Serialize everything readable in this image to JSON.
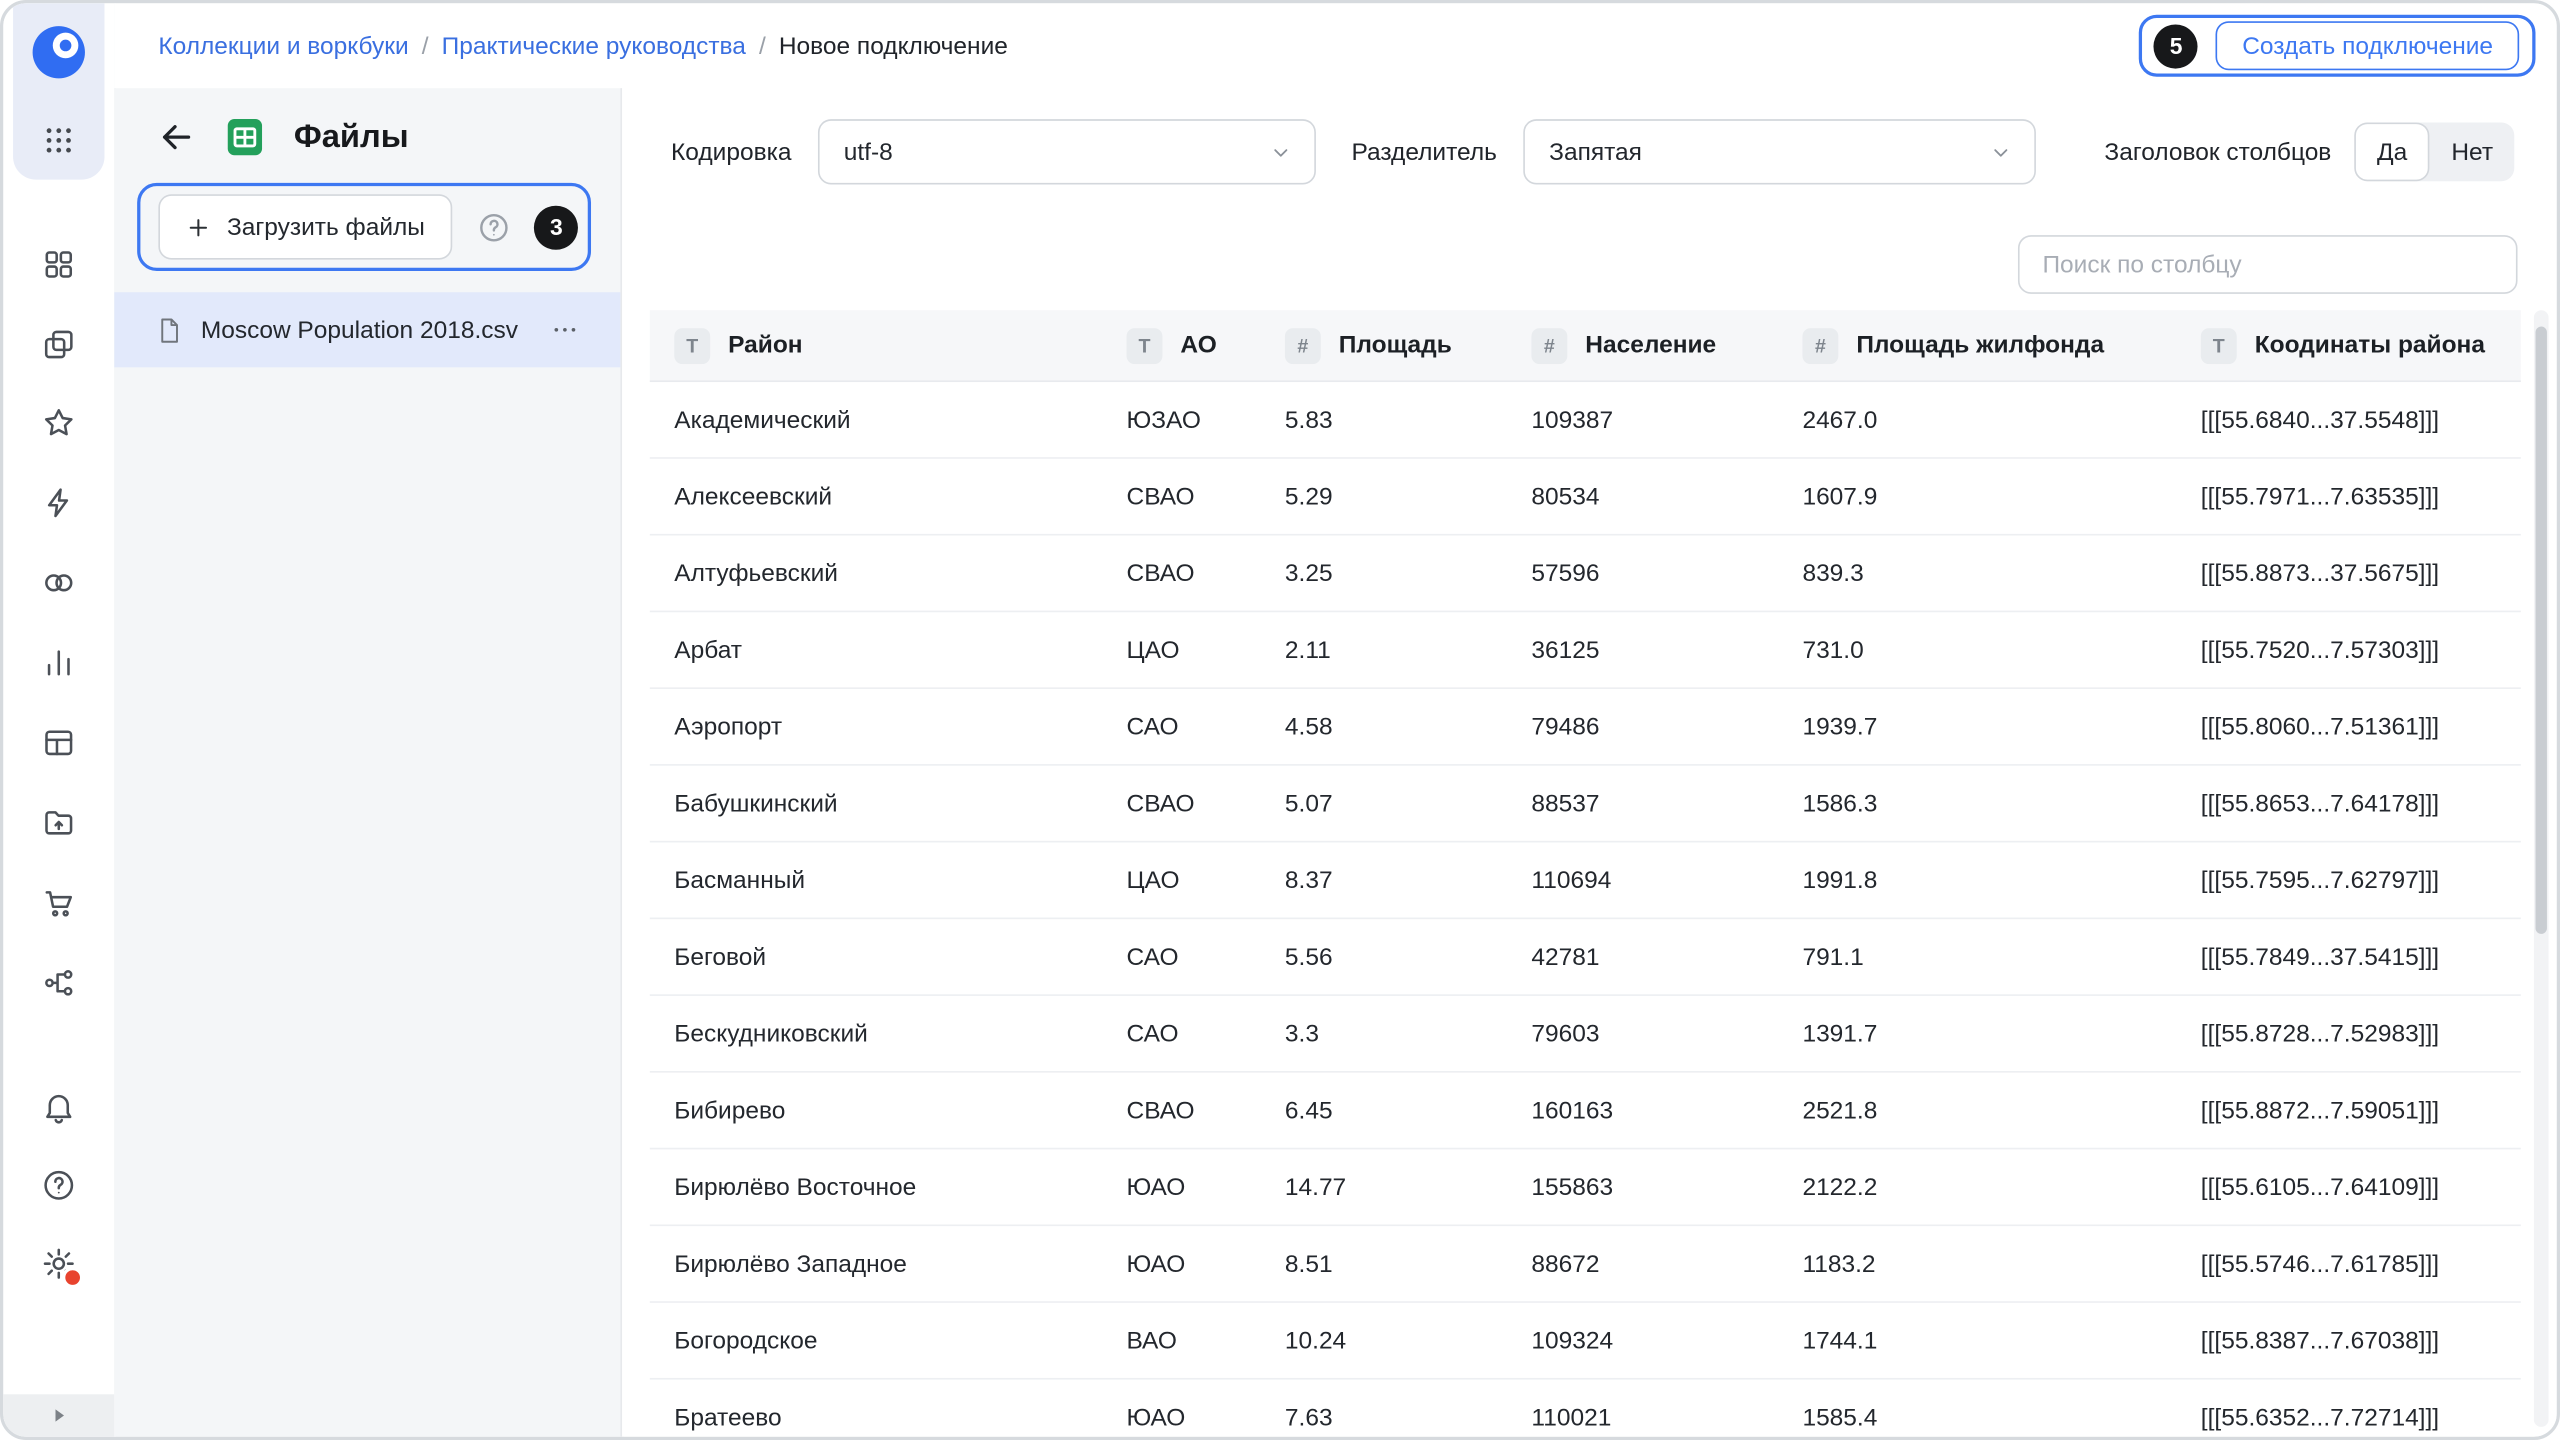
{
  "breadcrumbs": {
    "separator": "/",
    "items": [
      {
        "label": "Коллекции и воркбуки",
        "link": true
      },
      {
        "label": "Практические руководства",
        "link": true
      },
      {
        "label": "Новое подключение",
        "link": false
      }
    ]
  },
  "topbar": {
    "step_badge": "5",
    "create_button": "Создать подключение"
  },
  "rail_icons": [
    "datalens-logo",
    "apps-grid",
    "collections",
    "workbooks",
    "favorites",
    "connections",
    "datasets",
    "charts",
    "dashboards",
    "storage",
    "marketplace",
    "services",
    "notifications-bell",
    "help",
    "settings-gear",
    "expand-play"
  ],
  "files_panel": {
    "title": "Файлы",
    "upload_button_label": "Загрузить файлы",
    "help_icon": "?",
    "step_badge": "3",
    "files": [
      {
        "name": "Moscow Population 2018.csv"
      }
    ]
  },
  "toolbar": {
    "encoding": {
      "label": "Кодировка",
      "value": "utf-8"
    },
    "delimiter": {
      "label": "Разделитель",
      "value": "Запятая"
    },
    "header_toggle": {
      "label": "Заголовок столбцов",
      "yes": "Да",
      "no": "Нет",
      "selected": "Да"
    },
    "search": {
      "placeholder": "Поиск по столбцу"
    }
  },
  "table": {
    "columns": [
      {
        "label": "Район",
        "type_icon": "T"
      },
      {
        "label": "АО",
        "type_icon": "T"
      },
      {
        "label": "Площадь",
        "type_icon": "#"
      },
      {
        "label": "Население",
        "type_icon": "#"
      },
      {
        "label": "Площадь жилфонда",
        "type_icon": "#"
      },
      {
        "label": "Коодинаты района",
        "type_icon": "T"
      }
    ],
    "rows": [
      [
        "Академический",
        "ЮЗАО",
        "5.83",
        "109387",
        "2467.0",
        "[[[55.6840...37.5548]]]"
      ],
      [
        "Алексеевский",
        "СВАО",
        "5.29",
        "80534",
        "1607.9",
        "[[[55.7971...7.63535]]]"
      ],
      [
        "Алтуфьевский",
        "СВАО",
        "3.25",
        "57596",
        "839.3",
        "[[[55.8873...37.5675]]]"
      ],
      [
        "Арбат",
        "ЦАО",
        "2.11",
        "36125",
        "731.0",
        "[[[55.7520...7.57303]]]"
      ],
      [
        "Аэропорт",
        "САО",
        "4.58",
        "79486",
        "1939.7",
        "[[[55.8060...7.51361]]]"
      ],
      [
        "Бабушкинский",
        "СВАО",
        "5.07",
        "88537",
        "1586.3",
        "[[[55.8653...7.64178]]]"
      ],
      [
        "Басманный",
        "ЦАО",
        "8.37",
        "110694",
        "1991.8",
        "[[[55.7595...7.62797]]]"
      ],
      [
        "Беговой",
        "САО",
        "5.56",
        "42781",
        "791.1",
        "[[[55.7849...37.5415]]]"
      ],
      [
        "Бескудниковский",
        "САО",
        "3.3",
        "79603",
        "1391.7",
        "[[[55.8728...7.52983]]]"
      ],
      [
        "Бибирево",
        "СВАО",
        "6.45",
        "160163",
        "2521.8",
        "[[[55.8872...7.59051]]]"
      ],
      [
        "Бирюлёво Восточное",
        "ЮАО",
        "14.77",
        "155863",
        "2122.2",
        "[[[55.6105...7.64109]]]"
      ],
      [
        "Бирюлёво Западное",
        "ЮАО",
        "8.51",
        "88672",
        "1183.2",
        "[[[55.5746...7.61785]]]"
      ],
      [
        "Богородское",
        "ВАО",
        "10.24",
        "109324",
        "1744.1",
        "[[[55.8387...7.67038]]]"
      ],
      [
        "Братеево",
        "ЮАО",
        "7.63",
        "110021",
        "1585.4",
        "[[[55.6352...7.72714]]]"
      ]
    ]
  },
  "colors": {
    "accent": "#3d78f2",
    "link": "#3a6fe0",
    "badge": "#17181a",
    "selected_row": "#e2e9fb",
    "panel_bg": "#f4f6f8",
    "green_icon": "#23a05b",
    "red_dot": "#e8432e"
  }
}
